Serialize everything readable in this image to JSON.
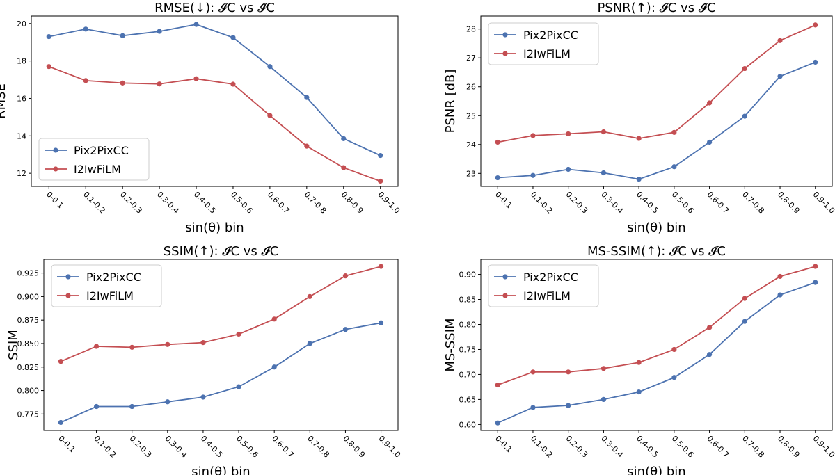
{
  "figure": {
    "colors": {
      "Pix2PixCC": "#4c72b0",
      "I2IwFiLM": "#c44e52"
    },
    "xlabel": "sin(θ) bin"
  },
  "chart_data": [
    {
      "type": "line",
      "title": "RMSE(↓): 𝓘C vs 𝓘̂C",
      "xlabel": "sin(θ) bin",
      "ylabel": "RMSE",
      "categories": [
        "0-0.1",
        "0.1-0.2",
        "0.2-0.3",
        "0.3-0.4",
        "0.4-0.5",
        "0.5-0.6",
        "0.6-0.7",
        "0.7-0.8",
        "0.8-0.9",
        "0.9-1.0"
      ],
      "ylim": [
        11.3,
        20.4
      ],
      "yticks": [
        12,
        14,
        16,
        18,
        20
      ],
      "ytick_labels": [
        "12",
        "14",
        "16",
        "18",
        "20"
      ],
      "legend": "bottom-left",
      "series": [
        {
          "name": "Pix2PixCC",
          "values": [
            19.3,
            19.7,
            19.35,
            19.58,
            19.95,
            19.25,
            17.7,
            16.05,
            13.85,
            12.95
          ]
        },
        {
          "name": "I2IwFiLM",
          "values": [
            17.7,
            16.95,
            16.82,
            16.77,
            17.05,
            16.76,
            15.08,
            13.45,
            12.3,
            11.58
          ]
        }
      ]
    },
    {
      "type": "line",
      "title": "PSNR(↑): 𝓘C vs 𝓘̂C",
      "xlabel": "sin(θ) bin",
      "ylabel": "PSNR [dB]",
      "categories": [
        "0-0.1",
        "0.1-0.2",
        "0.2-0.3",
        "0.3-0.4",
        "0.4-0.5",
        "0.5-0.6",
        "0.6-0.7",
        "0.7-0.8",
        "0.8-0.9",
        "0.9-1.0"
      ],
      "ylim": [
        22.55,
        28.45
      ],
      "yticks": [
        23,
        24,
        25,
        26,
        27,
        28
      ],
      "ytick_labels": [
        "23",
        "24",
        "25",
        "26",
        "27",
        "28"
      ],
      "legend": "top-left",
      "series": [
        {
          "name": "Pix2PixCC",
          "values": [
            22.85,
            22.93,
            23.14,
            23.02,
            22.8,
            23.23,
            24.08,
            24.98,
            26.36,
            26.85
          ]
        },
        {
          "name": "I2IwFiLM",
          "values": [
            24.08,
            24.31,
            24.37,
            24.44,
            24.21,
            24.42,
            25.44,
            26.63,
            27.6,
            28.14
          ]
        }
      ]
    },
    {
      "type": "line",
      "title": "SSIM(↑): 𝓘C vs 𝓘̂C",
      "xlabel": "sin(θ) bin",
      "ylabel": "SSIM",
      "categories": [
        "0-0.1",
        "0.1-0.2",
        "0.2-0.3",
        "0.3-0.4",
        "0.4-0.5",
        "0.5-0.6",
        "0.6-0.7",
        "0.7-0.8",
        "0.8-0.9",
        "0.9-1.0"
      ],
      "ylim": [
        0.7575,
        0.9395
      ],
      "yticks": [
        0.775,
        0.8,
        0.825,
        0.85,
        0.875,
        0.9,
        0.925
      ],
      "ytick_labels": [
        "0.775",
        "0.800",
        "0.825",
        "0.850",
        "0.875",
        "0.900",
        "0.925"
      ],
      "legend": "top-left",
      "series": [
        {
          "name": "Pix2PixCC",
          "values": [
            0.766,
            0.783,
            0.783,
            0.788,
            0.793,
            0.804,
            0.825,
            0.85,
            0.865,
            0.872
          ]
        },
        {
          "name": "I2IwFiLM",
          "values": [
            0.831,
            0.847,
            0.846,
            0.849,
            0.851,
            0.86,
            0.876,
            0.9,
            0.922,
            0.932
          ]
        }
      ]
    },
    {
      "type": "line",
      "title": "MS-SSIM(↑): 𝓘C vs 𝓘̂C",
      "xlabel": "sin(θ) bin",
      "ylabel": "MS-SSIM",
      "categories": [
        "0-0.1",
        "0.1-0.2",
        "0.2-0.3",
        "0.3-0.4",
        "0.4-0.5",
        "0.5-0.6",
        "0.6-0.7",
        "0.7-0.8",
        "0.8-0.9",
        "0.9-1.0"
      ],
      "ylim": [
        0.588,
        0.93
      ],
      "yticks": [
        0.6,
        0.65,
        0.7,
        0.75,
        0.8,
        0.85,
        0.9
      ],
      "ytick_labels": [
        "0.60",
        "0.65",
        "0.70",
        "0.75",
        "0.80",
        "0.85",
        "0.90"
      ],
      "legend": "top-left",
      "series": [
        {
          "name": "Pix2PixCC",
          "values": [
            0.603,
            0.634,
            0.638,
            0.65,
            0.665,
            0.694,
            0.74,
            0.806,
            0.859,
            0.884
          ]
        },
        {
          "name": "I2IwFiLM",
          "values": [
            0.679,
            0.705,
            0.705,
            0.712,
            0.724,
            0.75,
            0.794,
            0.852,
            0.896,
            0.916
          ]
        }
      ]
    }
  ]
}
